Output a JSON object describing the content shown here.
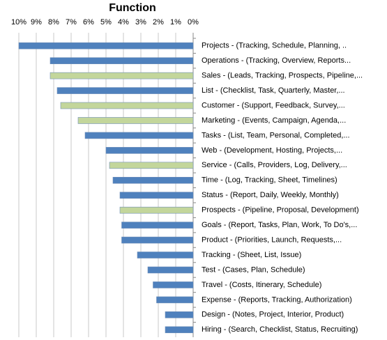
{
  "chart_data": {
    "type": "bar",
    "orientation": "horizontal",
    "title": "Function",
    "categories": [
      "Projects - (Tracking, Schedule, Planning, ..",
      "Operations - (Tracking, Overview, Reports...",
      "Sales - (Leads, Tracking, Prospects, Pipeline,...",
      "List - (Checklist, Task, Quarterly, Master,...",
      "Customer - (Support, Feedback, Survey,...",
      "Marketing - (Events, Campaign, Agenda,...",
      "Tasks - (List, Team, Personal, Completed,...",
      "Web - (Development, Hosting, Projects,...",
      "Service - (Calls, Providers, Log, Delivery,...",
      "Time - (Log, Tracking, Sheet, Timelines)",
      "Status - (Report, Daily, Weekly, Monthly)",
      "Prospects - (Pipeline, Proposal, Development)",
      "Goals - (Report, Tasks, Plan, Work, To Do's,...",
      "Product - (Priorities, Launch, Requests,...",
      "Tracking - (Sheet, List, Issue)",
      "Test - (Cases, Plan, Schedule)",
      "Travel - (Costs, Itinerary, Schedule)",
      "Expense - (Reports, Tracking, Authorization)",
      "Design - (Notes, Project, Interior, Product)",
      "Hiring - (Search, Checklist, Status, Recruiting)"
    ],
    "values": [
      10.0,
      8.2,
      8.2,
      7.8,
      7.6,
      6.6,
      6.2,
      5.0,
      4.8,
      4.6,
      4.2,
      4.2,
      4.1,
      4.1,
      3.2,
      2.6,
      2.3,
      2.1,
      1.6,
      1.6
    ],
    "colors": [
      "#4f81bd",
      "#4f81bd",
      "#c3d69b",
      "#4f81bd",
      "#c3d69b",
      "#c3d69b",
      "#4f81bd",
      "#4f81bd",
      "#c3d69b",
      "#4f81bd",
      "#4f81bd",
      "#c3d69b",
      "#4f81bd",
      "#4f81bd",
      "#4f81bd",
      "#4f81bd",
      "#4f81bd",
      "#4f81bd",
      "#4f81bd",
      "#4f81bd"
    ],
    "xlim": [
      10,
      0
    ],
    "xticks": [
      {
        "value": 10,
        "label": "10%"
      },
      {
        "value": 9,
        "label": "9%"
      },
      {
        "value": 8,
        "label": "8%"
      },
      {
        "value": 7,
        "label": "7%"
      },
      {
        "value": 6,
        "label": "6%"
      },
      {
        "value": 5,
        "label": "5%"
      },
      {
        "value": 4,
        "label": "4%"
      },
      {
        "value": 3,
        "label": "3%"
      },
      {
        "value": 2,
        "label": "2%"
      },
      {
        "value": 1,
        "label": "1%"
      },
      {
        "value": 0,
        "label": "0%"
      }
    ],
    "grid": true
  }
}
